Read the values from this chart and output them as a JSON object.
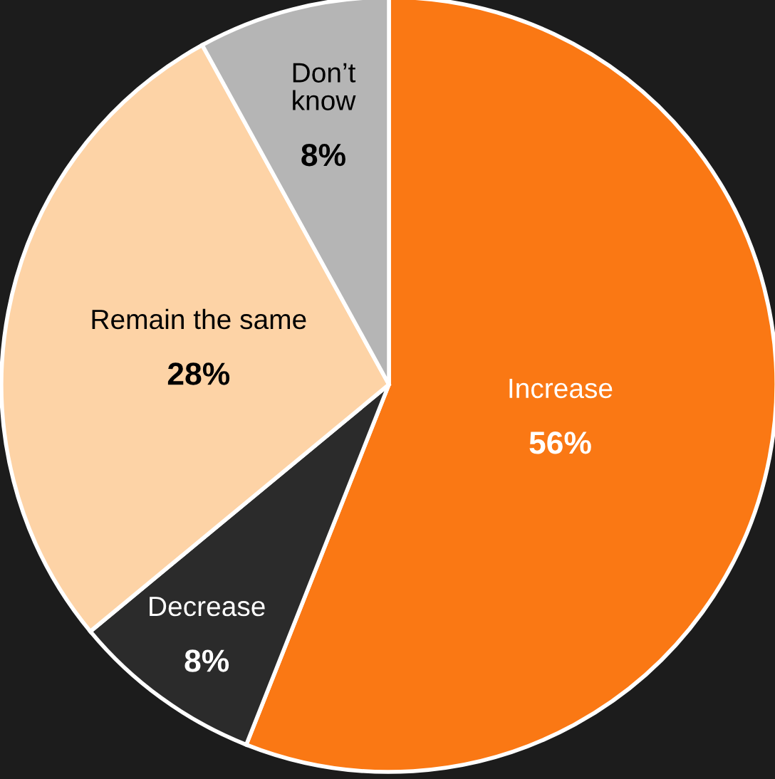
{
  "chart_data": {
    "type": "pie",
    "categories": [
      "Increase",
      "Decrease",
      "Remain the same",
      "Don’t know"
    ],
    "values": [
      56,
      8,
      28,
      8
    ],
    "value_labels": [
      "56%",
      "8%",
      "28%",
      "8%"
    ],
    "colors": [
      "#fa7814",
      "#2b2b2b",
      "#fdd3a6",
      "#b5b5b5"
    ]
  }
}
